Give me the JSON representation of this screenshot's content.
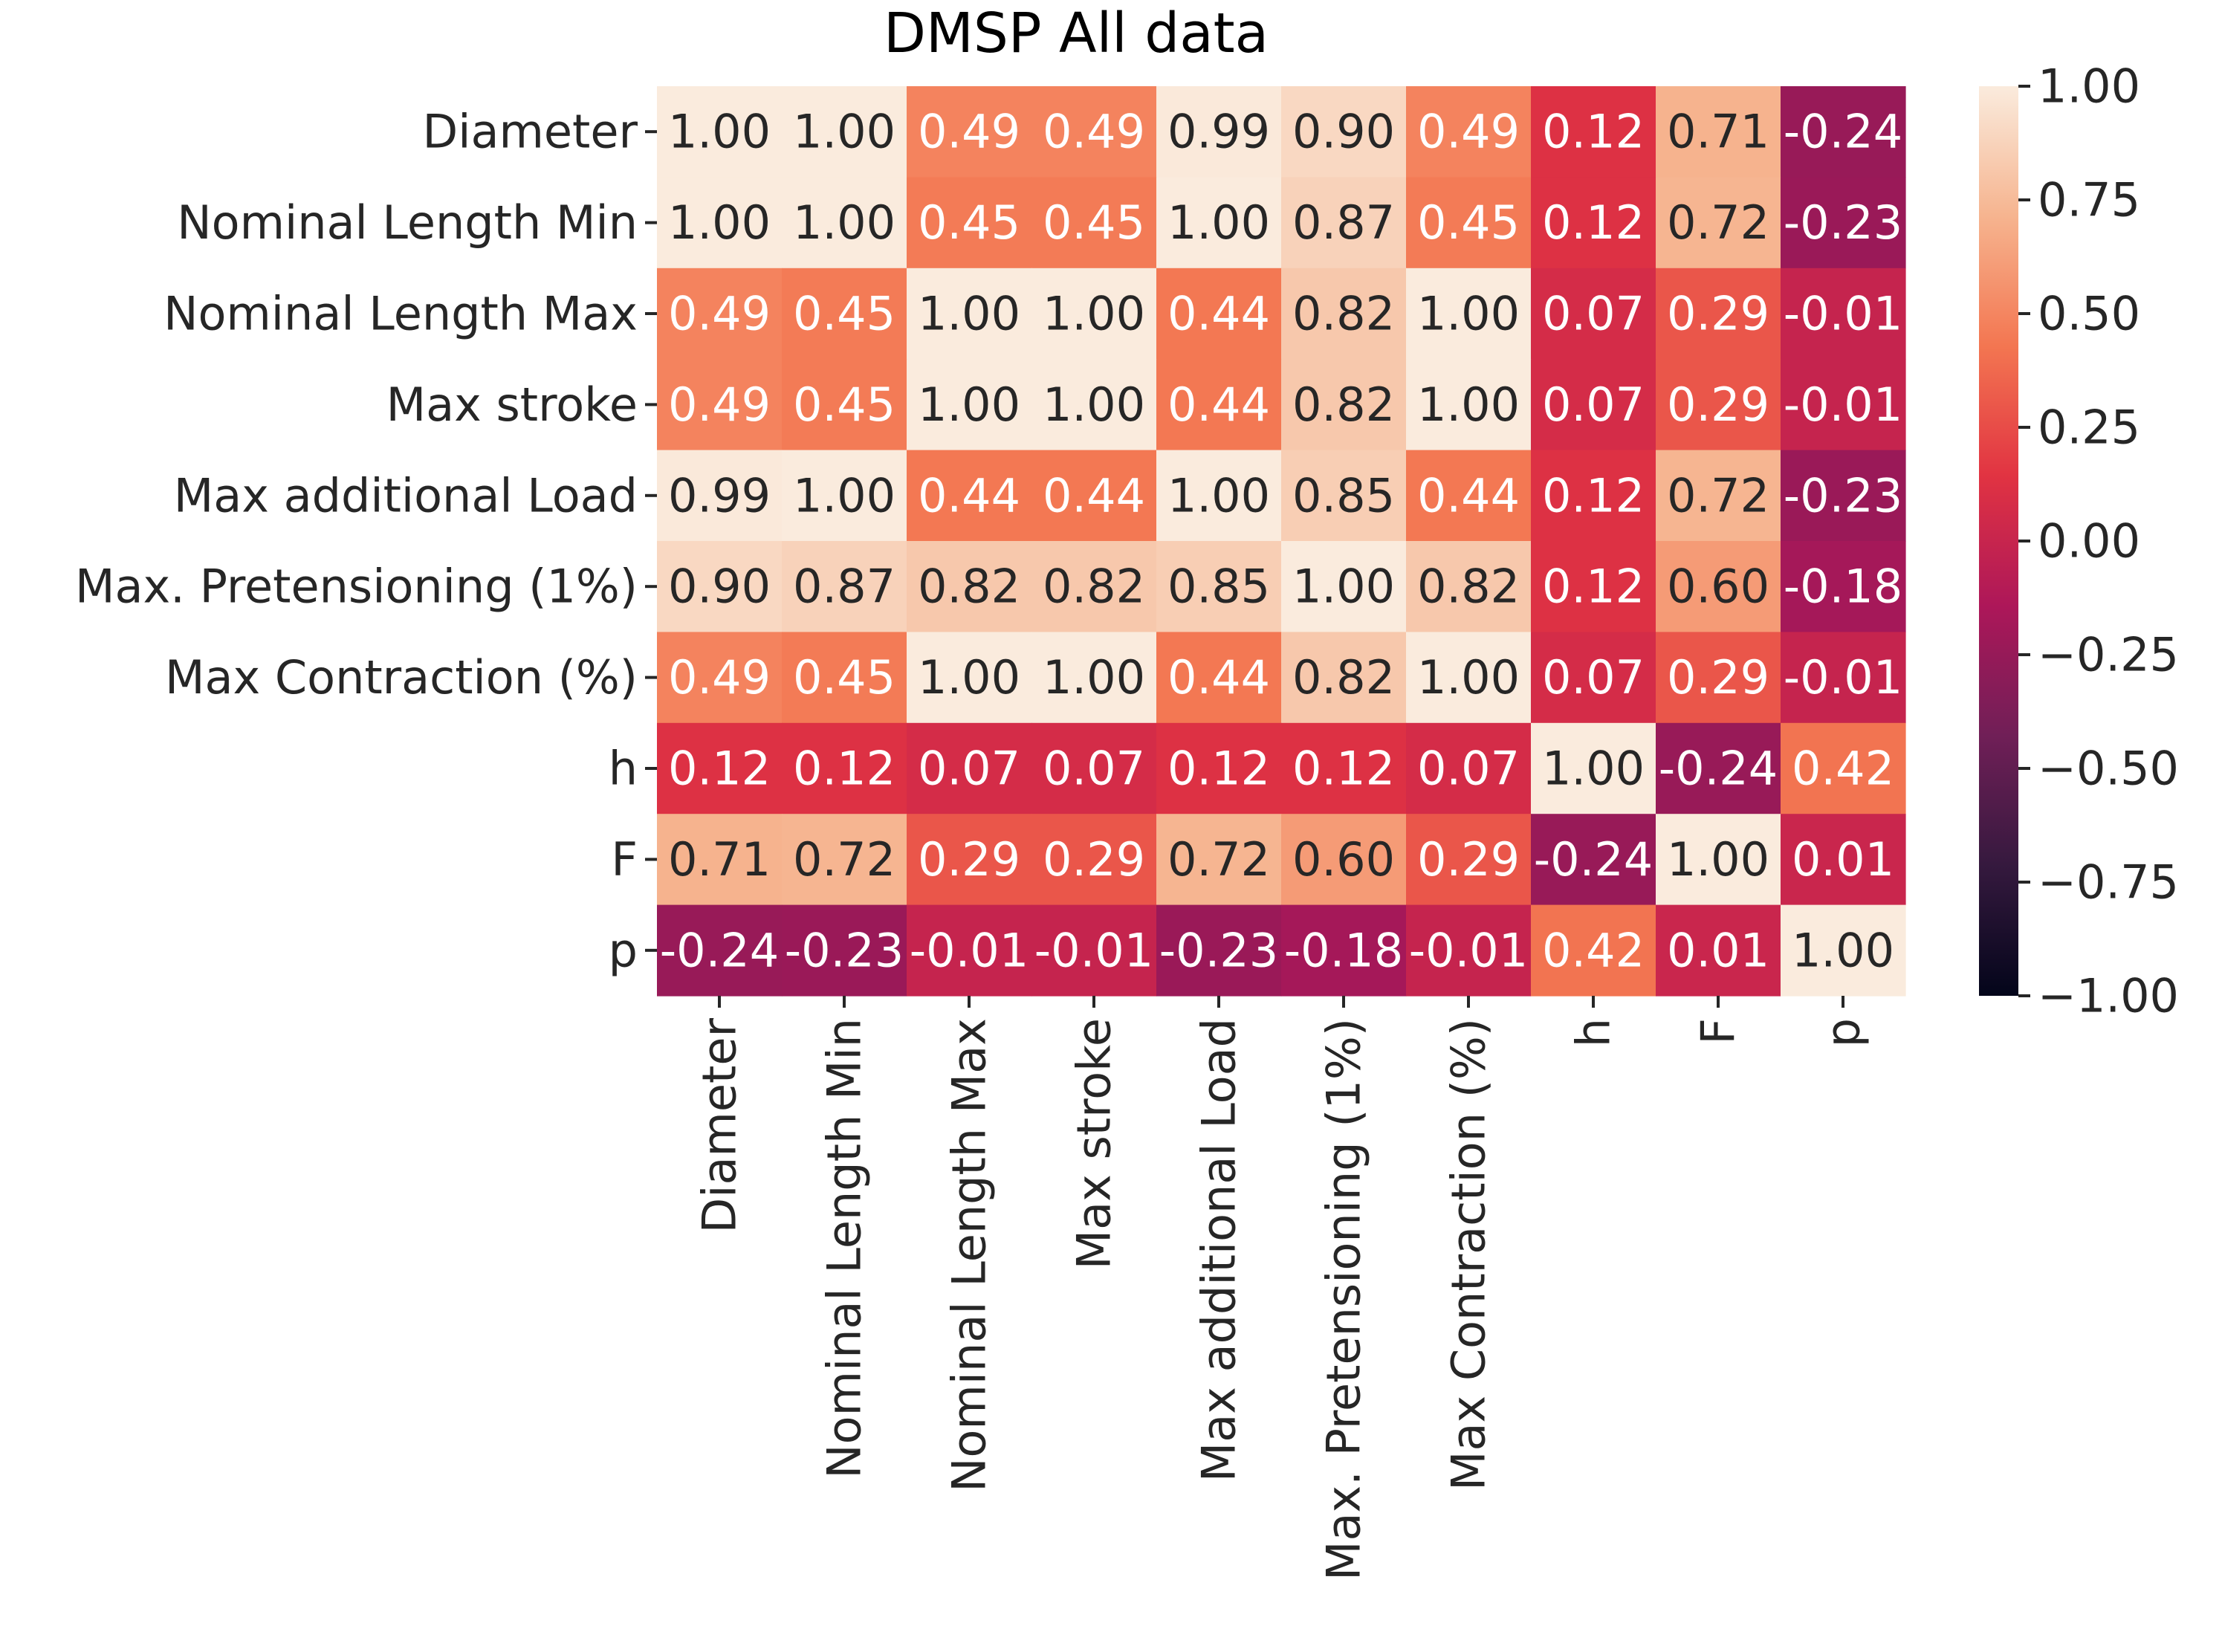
{
  "chart_data": {
    "type": "heatmap",
    "title": "DMSP All data",
    "xlabel": "",
    "ylabel": "",
    "labels": [
      "Diameter",
      "Nominal Length Min",
      "Nominal Length Max",
      "Max stroke",
      "Max additional Load",
      "Max. Pretensioning (1%)",
      "Max Contraction (%)",
      "h",
      "F",
      "p"
    ],
    "matrix": [
      [
        1.0,
        1.0,
        0.49,
        0.49,
        0.99,
        0.9,
        0.49,
        0.12,
        0.71,
        -0.24
      ],
      [
        1.0,
        1.0,
        0.45,
        0.45,
        1.0,
        0.87,
        0.45,
        0.12,
        0.72,
        -0.23
      ],
      [
        0.49,
        0.45,
        1.0,
        1.0,
        0.44,
        0.82,
        1.0,
        0.07,
        0.29,
        -0.01
      ],
      [
        0.49,
        0.45,
        1.0,
        1.0,
        0.44,
        0.82,
        1.0,
        0.07,
        0.29,
        -0.01
      ],
      [
        0.99,
        1.0,
        0.44,
        0.44,
        1.0,
        0.85,
        0.44,
        0.12,
        0.72,
        -0.23
      ],
      [
        0.9,
        0.87,
        0.82,
        0.82,
        0.85,
        1.0,
        0.82,
        0.12,
        0.6,
        -0.18
      ],
      [
        0.49,
        0.45,
        1.0,
        1.0,
        0.44,
        0.82,
        1.0,
        0.07,
        0.29,
        -0.01
      ],
      [
        0.12,
        0.12,
        0.07,
        0.07,
        0.12,
        0.12,
        0.07,
        1.0,
        -0.24,
        0.42
      ],
      [
        0.71,
        0.72,
        0.29,
        0.29,
        0.72,
        0.6,
        0.29,
        -0.24,
        1.0,
        0.01
      ],
      [
        -0.24,
        -0.23,
        -0.01,
        -0.01,
        -0.23,
        -0.18,
        -0.01,
        0.42,
        0.01,
        1.0
      ]
    ],
    "value_format": "0.00",
    "vmin": -1.0,
    "vmax": 1.0,
    "colormap": "rocket",
    "colorbar_ticks": [
      1.0,
      0.75,
      0.5,
      0.25,
      0.0,
      -0.25,
      -0.5,
      -0.75,
      -1.0
    ],
    "colorbar_tick_labels": [
      "1.00",
      "0.75",
      "0.50",
      "0.25",
      "0.00",
      "−0.25",
      "−0.50",
      "−0.75",
      "−1.00"
    ],
    "colormap_stops": [
      "#03051a",
      "#35193e",
      "#701f57",
      "#ad1759",
      "#e13342",
      "#f37651",
      "#f6b48f",
      "#faebdd"
    ],
    "text_color_dark": "#262626",
    "text_color_light": "#ffffff"
  }
}
